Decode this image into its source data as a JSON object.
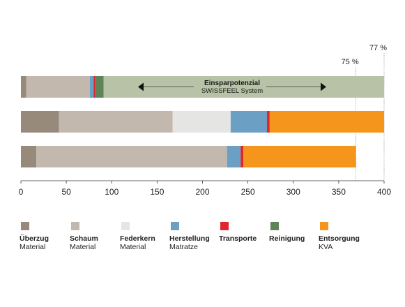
{
  "chart_data": {
    "type": "bar",
    "orientation": "horizontal",
    "stacked": true,
    "xlim": [
      0,
      400
    ],
    "ticks": [
      "0",
      "50",
      "100",
      "150",
      "200",
      "250",
      "300",
      "350",
      "400"
    ],
    "tick_values": [
      0,
      50,
      100,
      150,
      200,
      250,
      300,
      350,
      400
    ],
    "grid": false,
    "segments": [
      {
        "key": "ueberzug",
        "title": "Überzug",
        "sub": "Material",
        "color": "#978a7a"
      },
      {
        "key": "schaum",
        "title": "Schaum",
        "sub": "Material",
        "color": "#c2b8ae"
      },
      {
        "key": "federkern",
        "title": "Federkern",
        "sub": "Material",
        "color": "#e5e5e3"
      },
      {
        "key": "herstellung",
        "title": "Herstellung",
        "sub": "Matratze",
        "color": "#6b9fc4"
      },
      {
        "key": "transporte",
        "title": "Transporte",
        "sub": "",
        "color": "#e0252c"
      },
      {
        "key": "reinigung",
        "title": "Reinigung",
        "sub": "",
        "color": "#5e8457"
      },
      {
        "key": "entsorgung",
        "title": "Entsorgung",
        "sub": "KVA",
        "color": "#f5951c"
      }
    ],
    "bars": [
      {
        "name": "bar-1",
        "values": [
          6,
          70,
          0,
          4,
          2,
          9,
          0
        ],
        "savings_end": 400
      },
      {
        "name": "bar-2",
        "values": [
          42,
          125,
          64,
          40,
          3,
          0,
          126
        ]
      },
      {
        "name": "bar-3",
        "values": [
          17,
          210,
          0,
          15,
          3,
          0,
          124
        ]
      }
    ],
    "savings_color": "#b7c2a6",
    "reference_lines": [
      {
        "value": 369,
        "label": "75 %"
      },
      {
        "value": 400,
        "label": "77 %"
      }
    ],
    "annotation": {
      "title": "Einsparpotenzial",
      "subtitle": "SWISSFEEL System"
    }
  }
}
